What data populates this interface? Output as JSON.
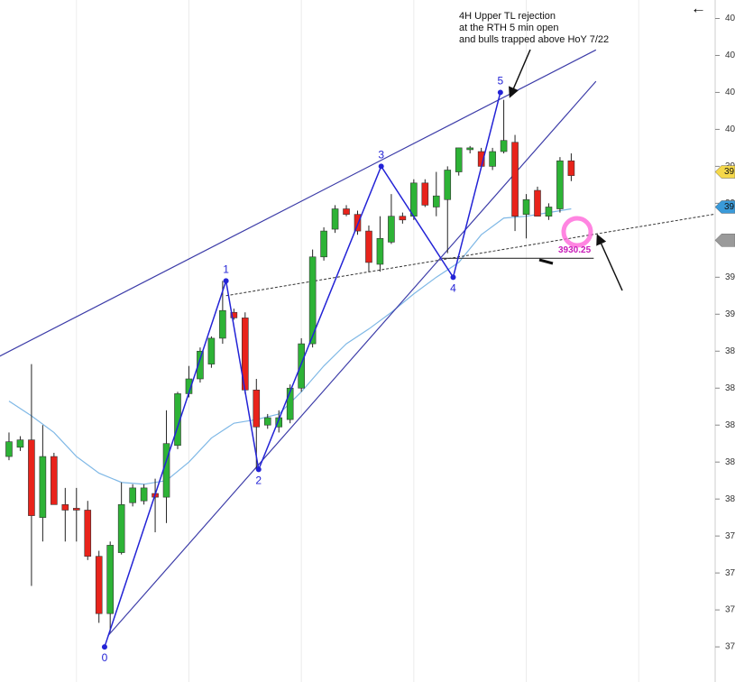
{
  "chart_data": {
    "type": "candlestick",
    "annotation": [
      "4H Upper TL rejection",
      "at the RTH 5 min open",
      "and bulls trapped above HoY 7/22"
    ],
    "back_icon": "←",
    "up_color": "#2db336",
    "down_color": "#e8231b",
    "open": [
      3823,
      3828,
      3832,
      3790,
      3823,
      3797,
      3795,
      3794,
      3769,
      3738,
      3771,
      3798,
      3799,
      3803,
      3801,
      3829,
      3857,
      3865,
      3873,
      3887,
      3901,
      3898,
      3859,
      3840,
      3839,
      3843,
      3860,
      3884,
      3931,
      3946,
      3957,
      3954,
      3945,
      3927,
      3939,
      3953,
      3953,
      3971,
      3958,
      3962,
      3977,
      3989,
      3988,
      3980,
      3988,
      3993,
      3954,
      3967,
      3953,
      3957,
      3983
    ],
    "high": [
      3836,
      3834,
      3873,
      3840,
      3825,
      3806,
      3806,
      3799,
      3772,
      3777,
      3809,
      3808,
      3808,
      3811,
      3848,
      3858,
      3872,
      3882,
      3888,
      3918,
      3903,
      3901,
      3865,
      3846,
      3848,
      3862,
      3887,
      3935,
      3947,
      3959,
      3959,
      3956,
      3948,
      3953,
      3965,
      3955,
      3973,
      3973,
      3977,
      3980,
      3990,
      3991,
      3990,
      3990,
      4016,
      3997,
      3965,
      3969,
      3960,
      3985,
      3987
    ],
    "low": [
      3821,
      3826,
      3753,
      3777,
      3797,
      3777,
      3777,
      3767,
      3733,
      3728,
      3770,
      3796,
      3797,
      3782,
      3787,
      3827,
      3855,
      3863,
      3871,
      3884,
      3897,
      3857,
      3816,
      3838,
      3836,
      3841,
      3858,
      3882,
      3929,
      3944,
      3953,
      3943,
      3923,
      3923,
      3938,
      3949,
      3951,
      3958,
      3953,
      3933,
      3975,
      3987,
      3980,
      3978,
      3987,
      3945,
      3941,
      3953,
      3951,
      3955,
      3972
    ],
    "close": [
      3831,
      3832,
      3791,
      3823,
      3797,
      3794,
      3794,
      3769,
      3738,
      3775,
      3797,
      3806,
      3806,
      3801,
      3830,
      3857,
      3865,
      3880,
      3887,
      3902,
      3898,
      3859,
      3839,
      3844,
      3844,
      3860,
      3884,
      3931,
      3945,
      3957,
      3954,
      3945,
      3928,
      3941,
      3953,
      3951,
      3971,
      3959,
      3964,
      3978,
      3990,
      3990,
      3980,
      3988,
      3994,
      3953,
      3962,
      3953,
      3958,
      3983,
      3975
    ],
    "ma": {
      "color": "#7fb8e6",
      "x": [
        0,
        2,
        4,
        6,
        8,
        10,
        12,
        14,
        16,
        18,
        20,
        22,
        24,
        26,
        28,
        30,
        32,
        34,
        36,
        38,
        40,
        42,
        44,
        46,
        48,
        50
      ],
      "values": [
        3853,
        3845,
        3836,
        3823,
        3814,
        3809,
        3808,
        3810,
        3820,
        3833,
        3841,
        3843,
        3846,
        3858,
        3872,
        3884,
        3892,
        3901,
        3911,
        3920,
        3928,
        3943,
        3952,
        3953,
        3955,
        3957
      ]
    },
    "trendlines": [
      {
        "color": "#3c3ca8",
        "x": [
          -2.2,
          52.2
        ],
        "values": [
          3873,
          4043
        ]
      },
      {
        "color": "#3c3ca8",
        "x": [
          8.8,
          52.2
        ],
        "values": [
          3726,
          4026
        ]
      }
    ],
    "dotted_line": {
      "x": [
        19.3,
        64.6
      ],
      "values": [
        3910,
        3956
      ]
    },
    "waves": {
      "color": "#2323d6",
      "labels": [
        "0",
        "1",
        "2",
        "3",
        "4",
        "5"
      ],
      "x": [
        8.5,
        19.3,
        22.2,
        33.1,
        39.5,
        43.7
      ],
      "values": [
        3720,
        3918,
        3816,
        3980,
        3920,
        4020
      ]
    },
    "level": 3930.25,
    "level_x": [
      38.5,
      52
    ],
    "price_tags": [
      {
        "value": 3977,
        "label": "39",
        "color": "#f5d84a"
      },
      {
        "value": 3958,
        "label": "39",
        "color": "#3a9ad9"
      },
      {
        "value": 3940,
        "color": "#9a9a9a"
      }
    ],
    "xlim": [
      -0.8,
      62.8
    ],
    "xgrid": [
      6,
      16,
      26,
      36,
      46,
      56
    ],
    "ylim": [
      3701,
      4070
    ],
    "yticks": [
      {
        "value": 4060,
        "label": "40"
      },
      {
        "value": 4040,
        "label": "40"
      },
      {
        "value": 4020,
        "label": "40"
      },
      {
        "value": 4000,
        "label": "40"
      },
      {
        "value": 3980,
        "label": "39"
      },
      {
        "value": 3960,
        "label": "39"
      },
      {
        "value": 3940,
        "label": "39"
      },
      {
        "value": 3920,
        "label": "39"
      },
      {
        "value": 3900,
        "label": "39"
      },
      {
        "value": 3880,
        "label": "38"
      },
      {
        "value": 3860,
        "label": "38"
      },
      {
        "value": 3840,
        "label": "38"
      },
      {
        "value": 3820,
        "label": "38"
      },
      {
        "value": 3800,
        "label": "38"
      },
      {
        "value": 3780,
        "label": "37"
      },
      {
        "value": 3760,
        "label": "37"
      },
      {
        "value": 3740,
        "label": "37"
      },
      {
        "value": 3720,
        "label": "37"
      }
    ]
  }
}
